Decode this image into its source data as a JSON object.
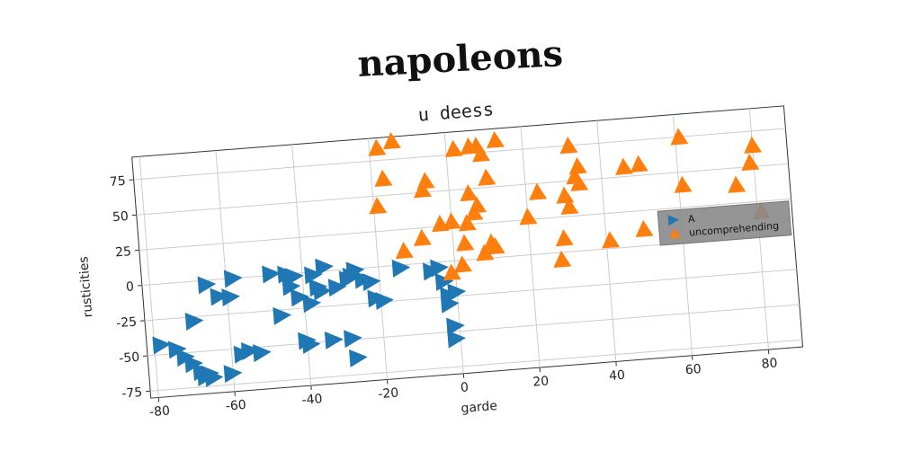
{
  "suptitle": "napoleons",
  "chart_data": {
    "type": "scatter",
    "title": "u deess",
    "xlabel": "garde",
    "ylabel": "rusticities",
    "xlim": [
      -82,
      89
    ],
    "ylim": [
      -80,
      91
    ],
    "xticks": [
      -80,
      -60,
      -40,
      -20,
      0,
      20,
      40,
      60,
      80
    ],
    "yticks": [
      -75,
      -50,
      -25,
      0,
      25,
      50,
      75
    ],
    "grid": true,
    "legend_position": "right",
    "series": [
      {
        "name": "A",
        "marker": "triangle-right",
        "color": "#1f77b4",
        "points": [
          [
            -78,
            -43
          ],
          [
            -74,
            -47
          ],
          [
            -72,
            -53
          ],
          [
            -70,
            -58
          ],
          [
            -68,
            -64
          ],
          [
            -66,
            -66
          ],
          [
            -67,
            -68
          ],
          [
            -69,
            -28
          ],
          [
            -65,
            -69
          ],
          [
            -60,
            -67
          ],
          [
            -65,
            -3
          ],
          [
            -62,
            -12
          ],
          [
            -59,
            -13
          ],
          [
            -58,
            0
          ],
          [
            -57,
            -54
          ],
          [
            -55,
            -52
          ],
          [
            -52,
            -54
          ],
          [
            -48,
            1
          ],
          [
            -44,
            0
          ],
          [
            -46,
            -29
          ],
          [
            -43,
            -9
          ],
          [
            -42,
            -2
          ],
          [
            -41,
            -17
          ],
          [
            -40,
            -48
          ],
          [
            -39,
            -51
          ],
          [
            -38,
            -22
          ],
          [
            -36,
            -11
          ],
          [
            -37,
            -2
          ],
          [
            -35,
            -14
          ],
          [
            -34,
            3
          ],
          [
            -33,
            -49
          ],
          [
            -31,
            -12
          ],
          [
            -28,
            -7
          ],
          [
            -27,
            -5
          ],
          [
            -26,
            -1
          ],
          [
            -24,
            -8
          ],
          [
            -28,
            -49
          ],
          [
            -27,
            -63
          ],
          [
            -22,
            -10
          ],
          [
            -21,
            -22
          ],
          [
            -19,
            -24
          ],
          [
            -14,
            -2
          ],
          [
            -6,
            -6
          ],
          [
            -4,
            -4
          ],
          [
            -2,
            -24
          ],
          [
            -2,
            -30
          ],
          [
            -1,
            -46
          ],
          [
            -1,
            -55
          ],
          [
            0,
            -22
          ],
          [
            -3,
            -14
          ]
        ]
      },
      {
        "name": "uncomprehending",
        "marker": "triangle-up",
        "color": "#ff7f0e",
        "points": [
          [
            -18,
            84
          ],
          [
            -14,
            88
          ],
          [
            -17,
            62
          ],
          [
            -19,
            43
          ],
          [
            -13,
            10
          ],
          [
            -8,
            18
          ],
          [
            -6,
            58
          ],
          [
            -7,
            52
          ],
          [
            -3,
            27
          ],
          [
            -1,
            -8
          ],
          [
            2,
            79
          ],
          [
            4,
            26
          ],
          [
            5,
            47
          ],
          [
            6,
            33
          ],
          [
            7,
            38
          ],
          [
            6,
            80
          ],
          [
            8,
            80
          ],
          [
            9,
            74
          ],
          [
            10,
            57
          ],
          [
            8,
            4
          ],
          [
            10,
            11
          ],
          [
            11,
            8
          ],
          [
            13,
            83
          ],
          [
            20,
            27
          ],
          [
            23,
            44
          ],
          [
            28,
            -5
          ],
          [
            29,
            10
          ],
          [
            30,
            40
          ],
          [
            31,
            32
          ],
          [
            32,
            75
          ],
          [
            33,
            53
          ],
          [
            34,
            60
          ],
          [
            34,
            48
          ],
          [
            41,
            6
          ],
          [
            46,
            57
          ],
          [
            50,
            58
          ],
          [
            50,
            12
          ],
          [
            61,
            75
          ],
          [
            61,
            41
          ],
          [
            75,
            38
          ],
          [
            79,
            53
          ],
          [
            80,
            65
          ],
          [
            81,
            18
          ],
          [
            3,
            12
          ],
          [
            0,
            28
          ],
          [
            2,
            -3
          ]
        ]
      }
    ]
  }
}
